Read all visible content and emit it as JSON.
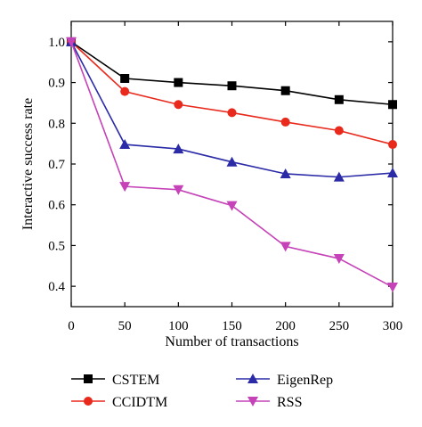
{
  "chart_data": {
    "type": "line",
    "title": "",
    "xlabel": "Number of transactions",
    "ylabel": "Interactive success rate",
    "xlim": [
      0,
      300
    ],
    "ylim": [
      0.35,
      1.05
    ],
    "xticks": [
      0,
      50,
      100,
      150,
      200,
      250,
      300
    ],
    "yticks": [
      0.4,
      0.5,
      0.6,
      0.7,
      0.8,
      0.9,
      1.0
    ],
    "ytick_labels": [
      "0.4",
      "0.5",
      "0.6",
      "0.7",
      "0.8",
      "0.9",
      "1.0"
    ],
    "grid": false,
    "legend_placement": "bottom",
    "x": [
      0,
      50,
      100,
      150,
      200,
      250,
      300
    ],
    "series": [
      {
        "name": "CSTEM",
        "color": "#000000",
        "marker": "square",
        "values": [
          1.0,
          0.91,
          0.9,
          0.892,
          0.88,
          0.858,
          0.846
        ]
      },
      {
        "name": "CCIDTM",
        "color": "#e8291c",
        "marker": "circle",
        "values": [
          1.0,
          0.878,
          0.846,
          0.826,
          0.803,
          0.782,
          0.748
        ]
      },
      {
        "name": "EigenRep",
        "color": "#2b2ba8",
        "marker": "triangle-up",
        "values": [
          1.0,
          0.748,
          0.737,
          0.705,
          0.676,
          0.668,
          0.678
        ]
      },
      {
        "name": "RSS",
        "color": "#c542b8",
        "marker": "triangle-down",
        "values": [
          1.0,
          0.645,
          0.637,
          0.598,
          0.498,
          0.468,
          0.398
        ]
      }
    ]
  }
}
